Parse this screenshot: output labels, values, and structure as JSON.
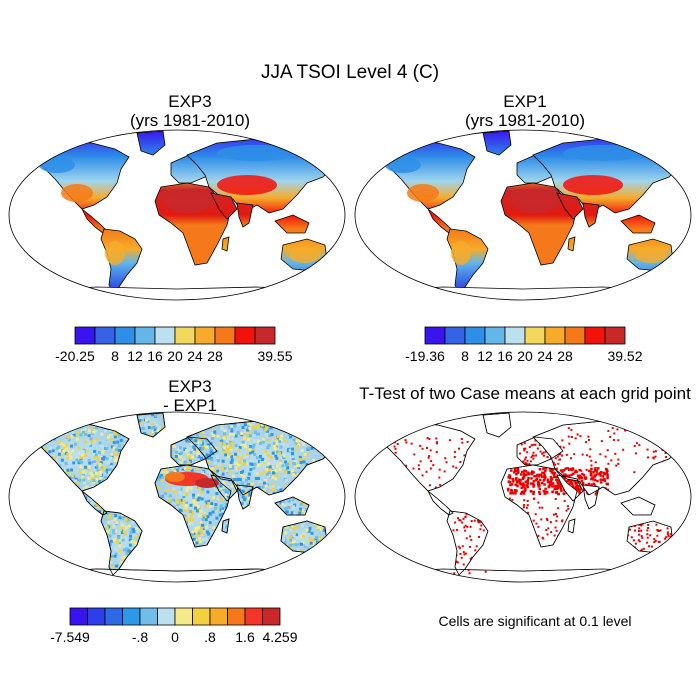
{
  "figure": {
    "title": "JJA TSOI Level 4 (C)",
    "panels": [
      {
        "id": "exp3",
        "title_line1": "EXP3",
        "title_line2": "(yrs 1981-2010)"
      },
      {
        "id": "exp1",
        "title_line1": "EXP1",
        "title_line2": "(yrs 1981-2010)"
      },
      {
        "id": "diff",
        "title_line1": "EXP3",
        "title_line2": "- EXP1"
      },
      {
        "id": "ttest",
        "title_line1": "T-Test of two Case means at each grid point",
        "note": "Cells are significant at 0.1 level"
      }
    ]
  },
  "colorbars": {
    "exp3": {
      "colors": [
        "#3a14f0",
        "#3562e6",
        "#2e8ee8",
        "#63b6e8",
        "#bde0ee",
        "#f2d85c",
        "#f6ab2a",
        "#f5791a",
        "#f2120a",
        "#c8282a"
      ],
      "labels": [
        "-20.25",
        "8",
        "12",
        "16",
        "20",
        "24",
        "28",
        "39.55"
      ],
      "label_slots": [
        0,
        2,
        3,
        4,
        5,
        6,
        7,
        10
      ]
    },
    "exp1": {
      "colors": [
        "#3a14f0",
        "#3562e6",
        "#2e8ee8",
        "#63b6e8",
        "#bde0ee",
        "#f2d85c",
        "#f6ab2a",
        "#f5791a",
        "#f2120a",
        "#c8282a"
      ],
      "labels": [
        "-19.36",
        "8",
        "12",
        "16",
        "20",
        "24",
        "28",
        "39.52"
      ],
      "label_slots": [
        0,
        2,
        3,
        4,
        5,
        6,
        7,
        10
      ]
    },
    "diff": {
      "colors": [
        "#3a14f0",
        "#2e3ee8",
        "#2e6ae6",
        "#2e98e8",
        "#6fbde8",
        "#bde0ee",
        "#f6e98a",
        "#f2d040",
        "#f6ab2a",
        "#f5791a",
        "#f2362a",
        "#c8282a"
      ],
      "labels": [
        "-7.549",
        "-.8",
        "0",
        ".8",
        "1.6",
        "4.259"
      ],
      "label_slots": [
        0,
        4,
        6,
        8,
        10,
        12
      ]
    }
  },
  "map_colors": {
    "ocean": "#ffffff",
    "coast": "#000000",
    "significant": "#ee0000"
  }
}
